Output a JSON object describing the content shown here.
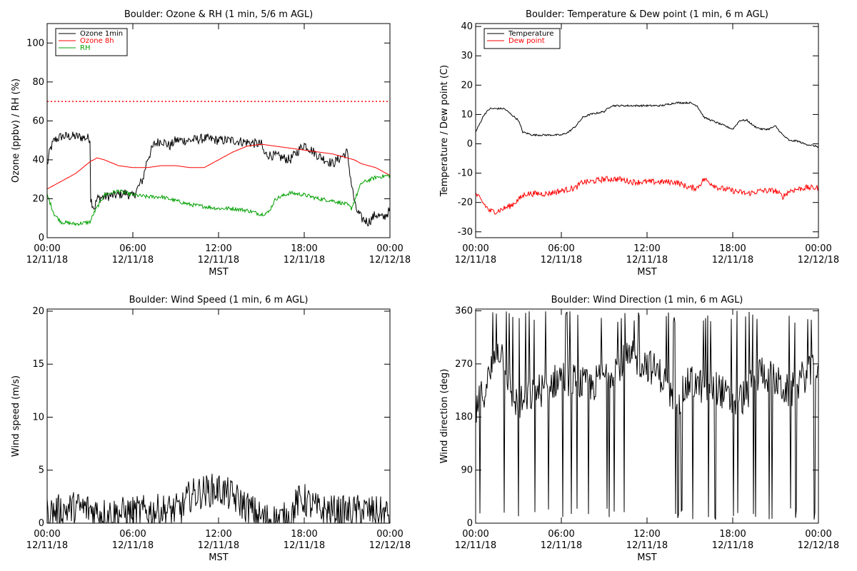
{
  "colors": {
    "ozone_1min": "#000000",
    "ozone_8h": "#ff0000",
    "rh": "#00a000",
    "temperature": "#000000",
    "dew_point": "#ff0000",
    "reference_line": "#ff0000"
  },
  "chart_data": [
    {
      "id": "ozone",
      "type": "line",
      "title": "Boulder: Ozone & RH (1 min, 5/6 m AGL)",
      "xlabel": "MST",
      "ylabel": "Ozone (ppbv) / RH (%)",
      "xlim": [
        0,
        24
      ],
      "ylim": [
        0,
        110
      ],
      "yticks": [
        0,
        20,
        40,
        60,
        80,
        100
      ],
      "x_tick_hours": [
        0,
        6,
        12,
        18,
        24
      ],
      "x_tick_labels": [
        [
          "00:00",
          "12/11/18"
        ],
        [
          "06:00",
          "12/11/18"
        ],
        [
          "12:00",
          "12/11/18"
        ],
        [
          "18:00",
          "12/11/18"
        ],
        [
          "00:00",
          "12/12/18"
        ]
      ],
      "legend": "top-left",
      "reference_line": {
        "y": 70,
        "style": "dotted"
      },
      "series": [
        {
          "name": "Ozone 1min",
          "noise": 2.5,
          "x": [
            0,
            0.2,
            0.5,
            1,
            2,
            3,
            3.05,
            3.3,
            3.5,
            4,
            5,
            5.5,
            6,
            6.7,
            7,
            7.5,
            8,
            8.6,
            9,
            10,
            11,
            12,
            13,
            14,
            15,
            15.2,
            16,
            17,
            18,
            19,
            20,
            21,
            21.3,
            21.6,
            22,
            22.5,
            23,
            23.5,
            24
          ],
          "values": [
            37,
            45,
            50,
            52,
            52,
            51,
            20,
            15,
            20,
            21,
            22,
            23,
            21,
            30,
            40,
            48,
            50,
            47,
            50,
            50,
            51,
            50,
            50,
            49,
            48,
            43,
            42,
            40,
            48,
            42,
            38,
            44,
            28,
            15,
            10,
            8,
            12,
            10,
            14
          ]
        },
        {
          "name": "Ozone 8h",
          "noise": 0,
          "x": [
            0,
            1,
            2,
            3,
            3.5,
            4,
            5,
            6,
            7,
            8,
            9,
            10,
            11,
            12,
            13,
            14,
            15,
            16,
            17,
            18,
            19,
            20,
            21,
            21.5,
            22,
            23,
            24
          ],
          "values": [
            25,
            29,
            33,
            39,
            41,
            40,
            37,
            36,
            36,
            37,
            37,
            36,
            36,
            40,
            44,
            47,
            48,
            47,
            46,
            45,
            44,
            43,
            41,
            40,
            38,
            36,
            32
          ]
        },
        {
          "name": "RH",
          "noise": 1,
          "x": [
            0,
            0.5,
            1,
            2,
            3,
            3.3,
            4,
            5,
            6,
            7,
            8,
            9,
            10,
            11,
            12,
            13,
            14,
            15,
            15.5,
            16,
            17,
            18,
            19,
            20,
            21,
            21.3,
            22,
            23,
            24
          ],
          "values": [
            22,
            12,
            8,
            7,
            8,
            13,
            22,
            24,
            22,
            21,
            21,
            19,
            17,
            16,
            15,
            15,
            14,
            12,
            13,
            20,
            23,
            22,
            20,
            19,
            17,
            15,
            28,
            31,
            32
          ]
        }
      ]
    },
    {
      "id": "temperature",
      "type": "line",
      "title": "Boulder: Temperature & Dew point (1 min, 6 m AGL)",
      "xlabel": "MST",
      "ylabel": "Temperature / Dew point (C)",
      "xlim": [
        0,
        24
      ],
      "ylim": [
        -32,
        41
      ],
      "yticks": [
        -30,
        -20,
        -10,
        0,
        10,
        20,
        30,
        40
      ],
      "x_tick_hours": [
        0,
        6,
        12,
        18,
        24
      ],
      "x_tick_labels": [
        [
          "00:00",
          "12/11/18"
        ],
        [
          "06:00",
          "12/11/18"
        ],
        [
          "12:00",
          "12/11/18"
        ],
        [
          "18:00",
          "12/11/18"
        ],
        [
          "00:00",
          "12/12/18"
        ]
      ],
      "legend": "top-left",
      "series": [
        {
          "name": "Temperature",
          "noise": 0.3,
          "x": [
            0,
            0.3,
            0.6,
            1,
            1.5,
            2,
            2.5,
            3,
            3.3,
            4,
            5,
            6,
            6.5,
            7,
            7.5,
            8,
            9,
            9.5,
            10,
            11,
            12,
            13,
            14,
            14.5,
            15,
            15.5,
            16,
            17,
            18,
            18.5,
            19,
            19.5,
            20,
            20.5,
            21,
            21.5,
            22,
            22.5,
            23,
            24
          ],
          "values": [
            4,
            7,
            10,
            12,
            12,
            12,
            10,
            8,
            4,
            3,
            3,
            3,
            4,
            6,
            9,
            10,
            11,
            13,
            13,
            13,
            13,
            13,
            14,
            14,
            14,
            13,
            9,
            7,
            5,
            8,
            8,
            6,
            5,
            5,
            6,
            3,
            1,
            1,
            0,
            -1
          ]
        },
        {
          "name": "Dew point",
          "noise": 1,
          "x": [
            0,
            0.5,
            1,
            1.5,
            2,
            2.5,
            3,
            3.5,
            4,
            5,
            6,
            7,
            7.5,
            8,
            9,
            10,
            11,
            12,
            13,
            14,
            15,
            15.5,
            16,
            17,
            18,
            19,
            20,
            21,
            21.5,
            22,
            23,
            24
          ],
          "values": [
            -17,
            -20,
            -23,
            -23,
            -22,
            -21,
            -19,
            -17,
            -17,
            -17,
            -16,
            -15,
            -13,
            -13,
            -12,
            -12,
            -13,
            -13,
            -13,
            -13,
            -15,
            -15,
            -12,
            -15,
            -16,
            -17,
            -16,
            -16,
            -18,
            -16,
            -15,
            -15
          ]
        }
      ]
    },
    {
      "id": "wind_speed",
      "type": "line",
      "title": "Boulder: Wind Speed (1 min, 6 m AGL)",
      "xlabel": "MST",
      "ylabel": "Wind speed (m/s)",
      "xlim": [
        0,
        24
      ],
      "ylim": [
        0,
        20.2
      ],
      "yticks": [
        0,
        5,
        10,
        15,
        20
      ],
      "x_tick_hours": [
        0,
        6,
        12,
        18,
        24
      ],
      "x_tick_labels": [
        [
          "00:00",
          "12/11/18"
        ],
        [
          "06:00",
          "12/11/18"
        ],
        [
          "12:00",
          "12/11/18"
        ],
        [
          "18:00",
          "12/11/18"
        ],
        [
          "00:00",
          "12/12/18"
        ]
      ],
      "series": [
        {
          "name": "",
          "noise": 1.6,
          "x": [
            0,
            1,
            2,
            3,
            4,
            5,
            6,
            7,
            8,
            9,
            9.5,
            10,
            11,
            12,
            13,
            14,
            14.5,
            15,
            16,
            17,
            17.5,
            18,
            19,
            20,
            21,
            22,
            23,
            24
          ],
          "values": [
            1,
            1.2,
            1.5,
            1.3,
            0.9,
            0.9,
            1,
            1.1,
            1.2,
            1.2,
            1.5,
            2.6,
            3,
            3.2,
            2.5,
            1.5,
            1,
            0.5,
            0.3,
            0.5,
            2,
            2.2,
            1.2,
            1.1,
            1,
            1.2,
            1,
            0.8
          ]
        }
      ]
    },
    {
      "id": "wind_direction",
      "type": "line",
      "title": "Boulder: Wind Direction (1 min, 6 m AGL)",
      "xlabel": "MST",
      "ylabel": "Wind direction (deg)",
      "xlim": [
        0,
        24
      ],
      "ylim": [
        0,
        363
      ],
      "yticks": [
        0,
        90,
        180,
        270,
        360
      ],
      "x_tick_hours": [
        0,
        6,
        12,
        18,
        24
      ],
      "x_tick_labels": [
        [
          "00:00",
          "12/11/18"
        ],
        [
          "06:00",
          "12/11/18"
        ],
        [
          "12:00",
          "12/11/18"
        ],
        [
          "18:00",
          "12/11/18"
        ],
        [
          "00:00",
          "12/12/18"
        ]
      ],
      "series": [
        {
          "name": "",
          "noise": 30,
          "x": [
            0,
            1,
            1.5,
            2,
            2.5,
            3,
            4,
            5,
            6,
            7,
            8,
            9,
            10,
            11,
            12,
            13,
            14,
            15,
            16,
            17,
            18,
            19,
            20,
            21,
            22,
            23,
            24
          ],
          "values": [
            190,
            250,
            300,
            280,
            220,
            200,
            220,
            230,
            250,
            240,
            230,
            250,
            270,
            280,
            270,
            250,
            200,
            240,
            230,
            230,
            200,
            220,
            260,
            240,
            220,
            250,
            260
          ]
        }
      ]
    }
  ]
}
